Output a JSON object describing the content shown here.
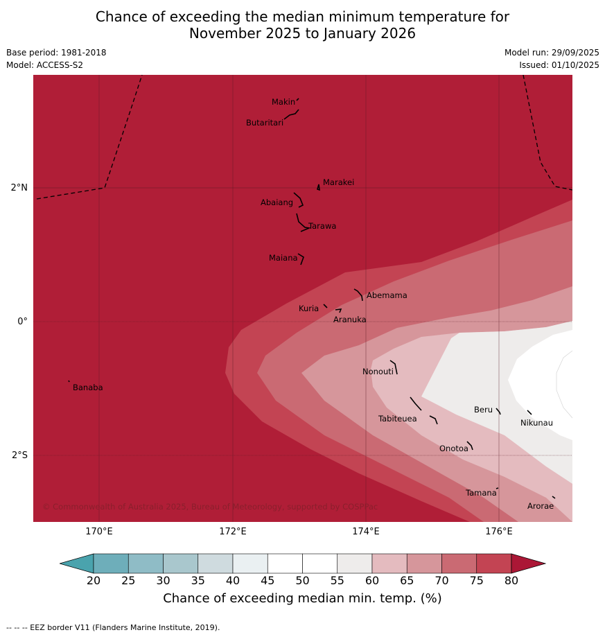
{
  "title": {
    "line1": "Chance of exceeding the median minimum temperature for",
    "line2": "November 2025 to January 2026"
  },
  "meta": {
    "base_period": "Base period: 1981-2018",
    "model": "Model: ACCESS-S2",
    "model_run": "Model run: 29/09/2025",
    "issued": "Issued: 01/10/2025"
  },
  "map": {
    "lat_labels": [
      "2°N",
      "0°",
      "2°S"
    ],
    "lon_labels": [
      "170°E",
      "172°E",
      "174°E",
      "176°E"
    ],
    "copyright": "© Commonwealth of Australia 2025, Bureau of Meteorology, supported by COSPPac",
    "islands": [
      "Makin",
      "Butaritari",
      "Marakei",
      "Abaiang",
      "Tarawa",
      "Maiana",
      "Abemama",
      "Kuria",
      "Aranuka",
      "Nonouti",
      "Banaba",
      "Beru",
      "Nikunau",
      "Tabiteuea",
      "Onotoa",
      "Tamana",
      "Arorae"
    ],
    "colors": {
      "c80": "#b01e37",
      "c75": "#c34453",
      "c70": "#ca6a73",
      "c65": "#d6969b",
      "c60": "#e4bbbf",
      "c55": "#eeeceb",
      "c50": "#ffffff"
    }
  },
  "colorbar": {
    "title": "Chance of exceeding median min. temp. (%)",
    "ticks": [
      "20",
      "25",
      "30",
      "35",
      "40",
      "45",
      "50",
      "55",
      "60",
      "65",
      "70",
      "75",
      "80"
    ],
    "colors": [
      "#6eaeba",
      "#8fbcc6",
      "#a9c7cd",
      "#cfdbdf",
      "#eaf0f2",
      "#ffffff",
      "#ffffff",
      "#eeeceb",
      "#e4bbbf",
      "#d6969b",
      "#ca6a73",
      "#c34453"
    ],
    "under_color": "#4aa3ad",
    "over_color": "#ab1736"
  },
  "footer": "--  --  -- EEZ border V11 (Flanders Marine Institute, 2019)."
}
